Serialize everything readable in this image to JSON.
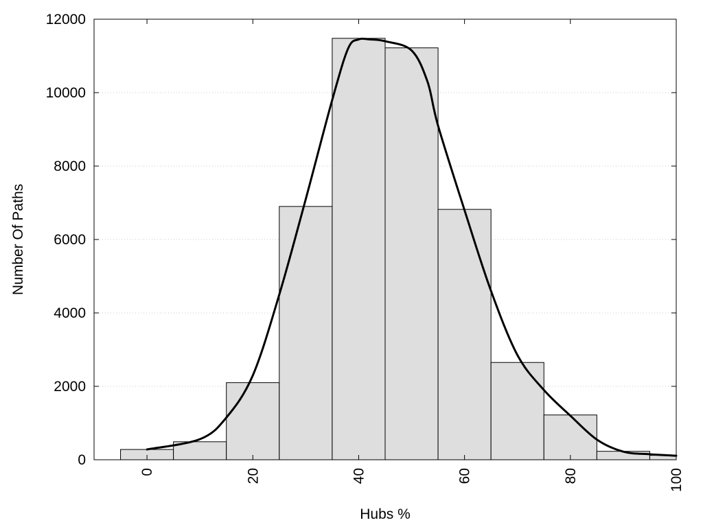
{
  "chart_data": {
    "type": "bar",
    "subtype": "histogram",
    "title": "",
    "xlabel": "Hubs %",
    "ylabel": "Number Of Paths",
    "xlim": [
      -10,
      100
    ],
    "ylim": [
      0,
      12000
    ],
    "x_ticks": [
      "0",
      "20",
      "40",
      "60",
      "80",
      "100"
    ],
    "y_ticks": [
      "0",
      "2000",
      "4000",
      "6000",
      "8000",
      "10000",
      "12000"
    ],
    "x_tick_rotation": "vertical",
    "grid": "horizontal dotted",
    "bin_width": 10,
    "bins": [
      {
        "center": 0,
        "value": 280
      },
      {
        "center": 10,
        "value": 490
      },
      {
        "center": 20,
        "value": 2100
      },
      {
        "center": 30,
        "value": 6900
      },
      {
        "center": 40,
        "value": 11480
      },
      {
        "center": 50,
        "value": 11220
      },
      {
        "center": 60,
        "value": 6820
      },
      {
        "center": 70,
        "value": 2650
      },
      {
        "center": 80,
        "value": 1220
      },
      {
        "center": 90,
        "value": 230
      },
      {
        "center": 100,
        "value": 120
      }
    ],
    "density_curve": {
      "x": [
        0,
        10,
        15,
        20,
        25,
        30,
        35,
        38,
        40,
        42,
        45,
        50,
        53,
        55,
        60,
        65,
        70,
        75,
        80,
        85,
        90,
        95,
        100
      ],
      "y": [
        280,
        560,
        1150,
        2300,
        4500,
        7100,
        9800,
        11200,
        11450,
        11450,
        11400,
        11150,
        10300,
        9100,
        6800,
        4600,
        2850,
        1900,
        1200,
        550,
        220,
        150,
        110
      ]
    },
    "colors": {
      "bar_fill": "#dedede",
      "bar_edge": "#000000",
      "curve": "#000000",
      "grid": "#c8c8c8"
    }
  }
}
